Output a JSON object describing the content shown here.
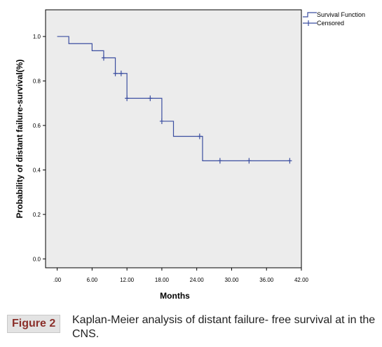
{
  "chart_data": {
    "type": "line",
    "step": true,
    "xlabel": "Months",
    "ylabel": "Probability of distant failure-survival(%)",
    "xlim": [
      -2,
      42
    ],
    "ylim": [
      -0.04,
      1.12
    ],
    "x_ticks": [
      0,
      6,
      12,
      18,
      24,
      30,
      36,
      42
    ],
    "x_tick_labels": [
      ".00",
      "6.00",
      "12.00",
      "18.00",
      "24.00",
      "30.00",
      "36.00",
      "42.00"
    ],
    "y_ticks": [
      0.0,
      0.2,
      0.4,
      0.6,
      0.8,
      1.0
    ],
    "y_tick_labels": [
      "0.0",
      "0.2",
      "0.4",
      "0.6",
      "0.8",
      "1.0"
    ],
    "grid": false,
    "legend_position": "top-right",
    "series": [
      {
        "name": "Survival Function",
        "x": [
          0,
          2,
          6,
          8,
          10,
          12,
          18,
          20,
          25,
          40
        ],
        "y": [
          1.0,
          0.968,
          0.936,
          0.904,
          0.834,
          0.722,
          0.619,
          0.551,
          0.441,
          0.441
        ]
      },
      {
        "name": "Censored",
        "x": [
          8,
          10,
          11,
          12,
          16,
          18,
          24.5,
          28,
          33,
          40
        ],
        "y": [
          0.904,
          0.834,
          0.834,
          0.722,
          0.722,
          0.619,
          0.551,
          0.441,
          0.441,
          0.441
        ]
      }
    ],
    "colors": {
      "line": "#3b4ea0",
      "plot_bg": "#ececec",
      "axis": "#000000"
    }
  },
  "caption": {
    "label": "Figure 2",
    "text": "Kaplan-Meier analysis of distant failure- free survival at in the CNS."
  }
}
